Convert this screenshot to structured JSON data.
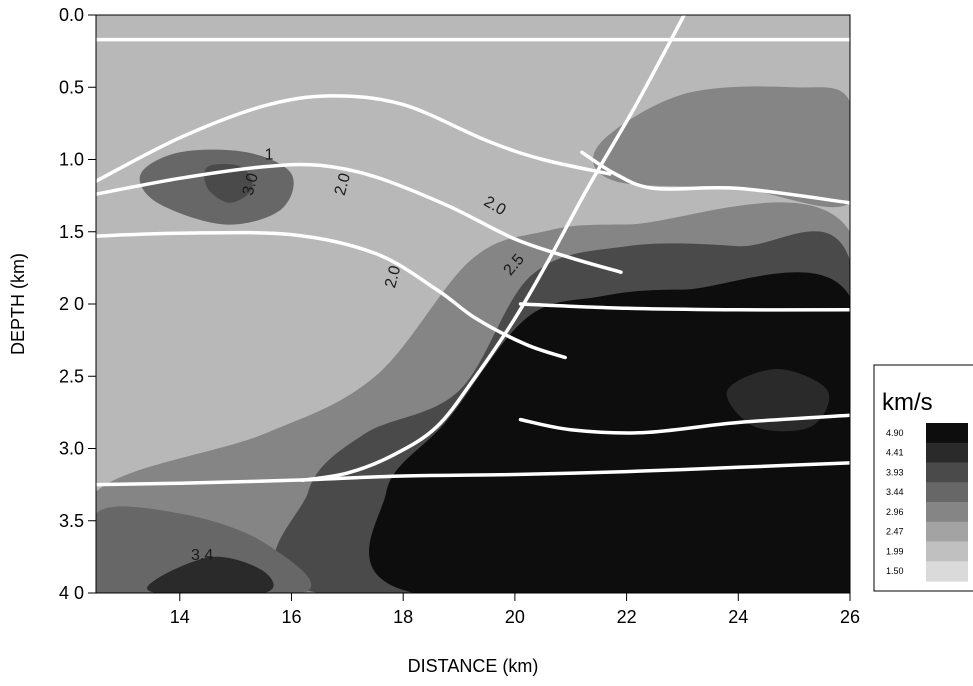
{
  "chart_data": {
    "type": "heatmap",
    "title": "",
    "xlabel": "DISTANCE (km)",
    "ylabel": "DEPTH (km)",
    "xlim": [
      12.5,
      26
    ],
    "ylim": [
      0.0,
      4.0
    ],
    "y_inverted": true,
    "grid": false,
    "x_ticks": [
      14,
      16,
      18,
      20,
      22,
      24,
      26
    ],
    "x_tick_labels": [
      "14",
      "16",
      "18",
      "20",
      "22",
      "24",
      "26"
    ],
    "y_ticks": [
      0.0,
      0.5,
      1.0,
      1.5,
      2.0,
      2.5,
      3.0,
      3.5,
      4.0
    ],
    "y_tick_labels": [
      "0.0",
      "0.5",
      "1.0",
      "1.5",
      "2 0",
      "2.5",
      "3.0",
      "3.5",
      "4 0"
    ],
    "legend": {
      "title": "km/s",
      "placement": "right",
      "levels": [
        "4.90",
        "4.41",
        "3.93",
        "3.44",
        "2.96",
        "2.47",
        "1.99",
        "1.50"
      ],
      "colors": [
        "#0d0d0d",
        "#2a2a2a",
        "#4a4a4a",
        "#676767",
        "#858585",
        "#a3a3a3",
        "#c0c0c0",
        "#dadada"
      ]
    },
    "regions": [
      {
        "name": "upper-right slow zone",
        "level": "2.96",
        "points": [
          [
            21.5,
            0.9
          ],
          [
            23,
            0.55
          ],
          [
            25,
            0.5
          ],
          [
            26,
            0.6
          ],
          [
            26,
            1.3
          ],
          [
            24,
            1.2
          ],
          [
            21.8,
            1.15
          ]
        ]
      },
      {
        "name": "shallow low-velocity pod",
        "level": "3.44",
        "points": [
          [
            13.3,
            1.1
          ],
          [
            14,
            0.95
          ],
          [
            15.2,
            0.95
          ],
          [
            16,
            1.1
          ],
          [
            15.8,
            1.35
          ],
          [
            14.8,
            1.45
          ],
          [
            13.6,
            1.3
          ]
        ]
      },
      {
        "name": "pod core",
        "level": "3.93",
        "points": [
          [
            14.5,
            1.05
          ],
          [
            15.1,
            1.05
          ],
          [
            15.3,
            1.2
          ],
          [
            14.9,
            1.3
          ],
          [
            14.5,
            1.2
          ]
        ]
      },
      {
        "name": "fault-zone gradient",
        "level": "2.96",
        "points": [
          [
            19.2,
            1.7
          ],
          [
            20.5,
            1.5
          ],
          [
            22,
            1.45
          ],
          [
            26,
            1.5
          ],
          [
            26,
            4.0
          ],
          [
            12.5,
            4.0
          ],
          [
            12.5,
            3.3
          ],
          [
            15.5,
            2.9
          ],
          [
            17.5,
            2.5
          ]
        ]
      },
      {
        "name": "deep fast body",
        "level": "3.93",
        "points": [
          [
            20.3,
            1.8
          ],
          [
            22,
            1.6
          ],
          [
            24,
            1.6
          ],
          [
            26,
            1.7
          ],
          [
            26,
            4.0
          ],
          [
            16.5,
            4.0
          ],
          [
            16.3,
            3.3
          ],
          [
            17.3,
            2.9
          ],
          [
            19,
            2.6
          ]
        ]
      },
      {
        "name": "deep fast core",
        "level": "4.90",
        "points": [
          [
            20.2,
            2.1
          ],
          [
            21.5,
            1.95
          ],
          [
            23,
            1.9
          ],
          [
            26,
            1.95
          ],
          [
            26,
            4.0
          ],
          [
            18.2,
            4.0
          ],
          [
            17.7,
            3.3
          ],
          [
            18.8,
            2.8
          ]
        ]
      },
      {
        "name": "deep lens",
        "level": "4.41",
        "points": [
          [
            23.8,
            2.6
          ],
          [
            24.7,
            2.45
          ],
          [
            25.6,
            2.6
          ],
          [
            25.3,
            2.85
          ],
          [
            24.3,
            2.85
          ]
        ]
      },
      {
        "name": "bottom-left fast zone",
        "level": "3.44",
        "points": [
          [
            12.5,
            3.45
          ],
          [
            14,
            3.45
          ],
          [
            15.5,
            3.65
          ],
          [
            16.2,
            4.0
          ],
          [
            12.5,
            4.0
          ]
        ]
      },
      {
        "name": "bottom-left pod",
        "level": "4.41",
        "points": [
          [
            13.6,
            3.9
          ],
          [
            14.6,
            3.75
          ],
          [
            15.5,
            3.85
          ],
          [
            15.5,
            4.0
          ],
          [
            13.6,
            4.0
          ]
        ]
      }
    ],
    "white_lines": [
      {
        "name": "seafloor reflector",
        "points": [
          [
            12.5,
            0.17
          ],
          [
            26,
            0.17
          ]
        ]
      },
      {
        "name": "reflector 1",
        "points": [
          [
            12.5,
            1.15
          ],
          [
            14,
            0.85
          ],
          [
            15.5,
            0.63
          ],
          [
            16.7,
            0.56
          ],
          [
            18,
            0.62
          ],
          [
            19.5,
            0.87
          ],
          [
            20.5,
            1.0
          ],
          [
            21.7,
            1.1
          ]
        ]
      },
      {
        "name": "reflector 1 continuation",
        "points": [
          [
            21.2,
            0.95
          ],
          [
            21.8,
            1.1
          ],
          [
            22.5,
            1.2
          ],
          [
            24,
            1.2
          ],
          [
            26,
            1.3
          ]
        ]
      },
      {
        "name": "reflector 2",
        "points": [
          [
            12.5,
            1.24
          ],
          [
            14,
            1.13
          ],
          [
            15.5,
            1.05
          ],
          [
            16.5,
            1.04
          ],
          [
            17.5,
            1.12
          ],
          [
            18.8,
            1.32
          ],
          [
            20,
            1.55
          ],
          [
            21,
            1.68
          ],
          [
            21.9,
            1.78
          ]
        ]
      },
      {
        "name": "reflector 3",
        "points": [
          [
            12.5,
            1.53
          ],
          [
            14,
            1.51
          ],
          [
            16,
            1.52
          ],
          [
            17.5,
            1.65
          ],
          [
            18.6,
            1.9
          ],
          [
            19.3,
            2.1
          ],
          [
            20.2,
            2.28
          ],
          [
            20.9,
            2.37
          ]
        ]
      },
      {
        "name": "reflector 4",
        "points": [
          [
            20.1,
            2.0
          ],
          [
            22,
            2.03
          ],
          [
            24,
            2.04
          ],
          [
            26,
            2.04
          ]
        ]
      },
      {
        "name": "reflector 5",
        "points": [
          [
            20.1,
            2.8
          ],
          [
            21,
            2.87
          ],
          [
            22.3,
            2.89
          ],
          [
            24,
            2.82
          ],
          [
            26,
            2.77
          ]
        ]
      },
      {
        "name": "basement reflector",
        "points": [
          [
            12.5,
            3.25
          ],
          [
            14,
            3.24
          ],
          [
            16,
            3.22
          ],
          [
            18,
            3.19
          ],
          [
            20,
            3.18
          ],
          [
            22,
            3.16
          ],
          [
            24,
            3.13
          ],
          [
            26,
            3.1
          ]
        ]
      },
      {
        "name": "fault",
        "points": [
          [
            23.1,
            -0.05
          ],
          [
            22.2,
            0.6
          ],
          [
            21.3,
            1.2
          ],
          [
            20.6,
            1.7
          ],
          [
            20.0,
            2.1
          ],
          [
            19.3,
            2.5
          ],
          [
            18.6,
            2.85
          ],
          [
            17.8,
            3.05
          ],
          [
            17.0,
            3.17
          ],
          [
            16.2,
            3.22
          ]
        ]
      }
    ],
    "contour_labels": [
      {
        "text": "1",
        "x": 15.6,
        "y": 1.0,
        "rotate": 0
      },
      {
        "text": "3.0",
        "x": 15.35,
        "y": 1.18,
        "rotate": -75
      },
      {
        "text": "2.0",
        "x": 17.0,
        "y": 1.18,
        "rotate": -75
      },
      {
        "text": "2.0",
        "x": 19.6,
        "y": 1.35,
        "rotate": 30
      },
      {
        "text": "2.5",
        "x": 20.05,
        "y": 1.75,
        "rotate": -50
      },
      {
        "text": "2.0",
        "x": 17.9,
        "y": 1.82,
        "rotate": -75
      },
      {
        "text": "3.4",
        "x": 14.4,
        "y": 3.77,
        "rotate": 0
      }
    ]
  }
}
